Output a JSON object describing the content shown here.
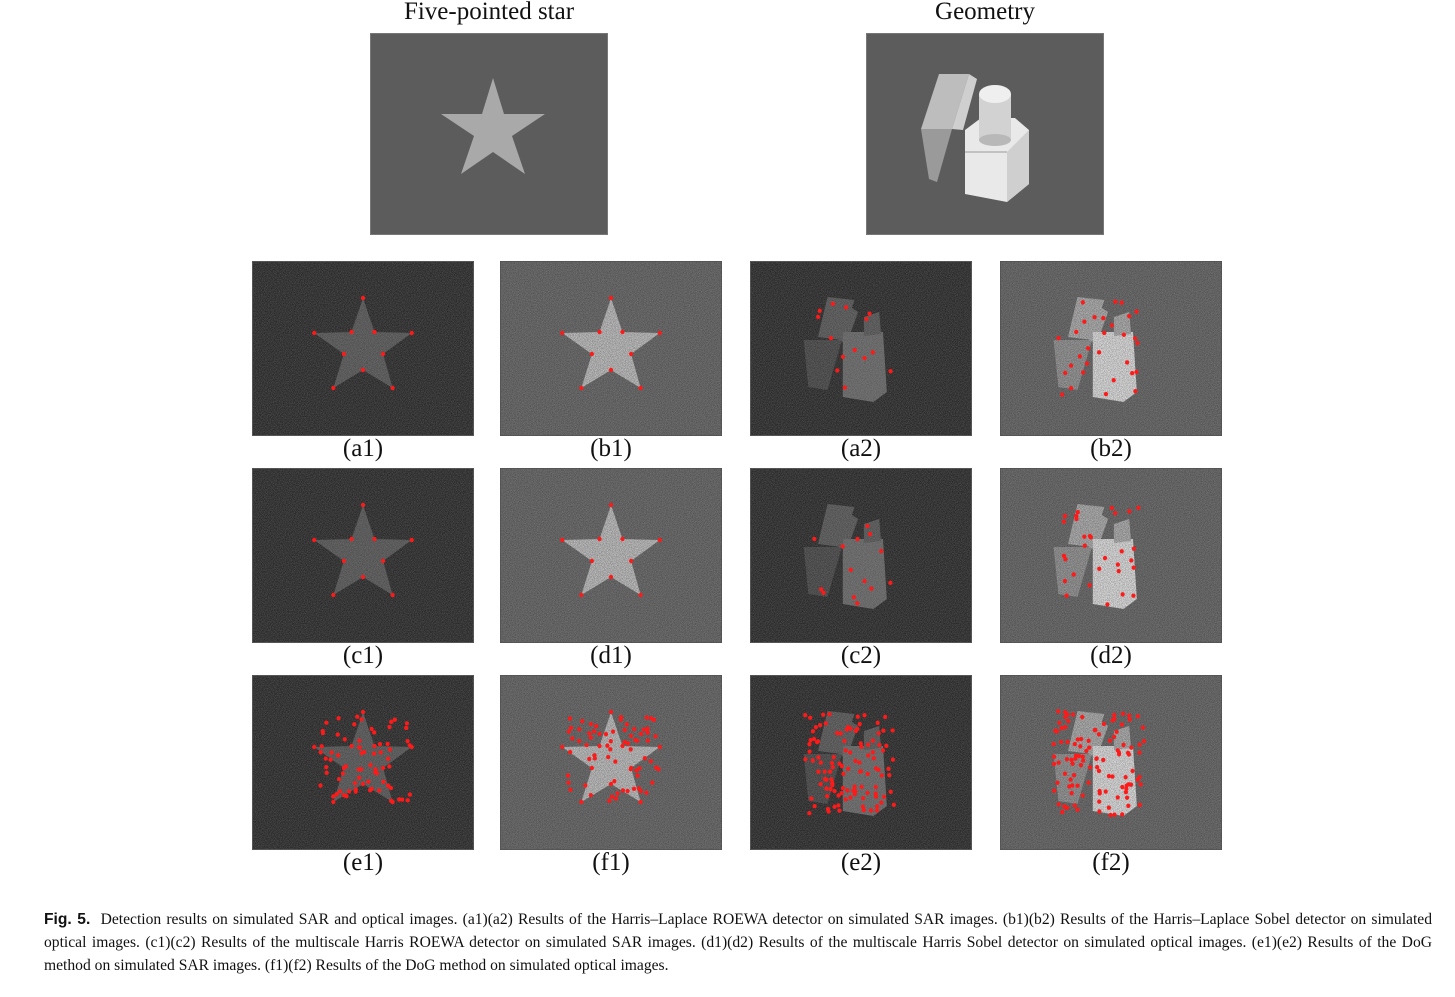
{
  "headers": {
    "star": "Five-pointed star",
    "geometry": "Geometry"
  },
  "panels": {
    "a1": "(a1)",
    "b1": "(b1)",
    "a2": "(a2)",
    "b2": "(b2)",
    "c1": "(c1)",
    "d1": "(d1)",
    "c2": "(c2)",
    "d2": "(d2)",
    "e1": "(e1)",
    "f1": "(f1)",
    "e2": "(e2)",
    "f2": "(f2)"
  },
  "caption": {
    "label": "Fig. 5.",
    "text": "Detection results on simulated SAR and optical images. (a1)(a2) Results of the Harris–Laplace ROEWA detector on simulated SAR images. (b1)(b2) Results of the Harris–Laplace Sobel detector on simulated optical images. (c1)(c2) Results of the multiscale Harris ROEWA detector on simulated SAR images. (d1)(d2) Results of the multiscale Harris Sobel detector on simulated optical images. (e1)(e2) Results of the DoG method on simulated SAR images. (f1)(f2) Results of the DoG method on simulated optical images."
  },
  "colors": {
    "marker": "#ff1a1a",
    "sar_background": "#222222",
    "optical_background": "#7a7a7a",
    "reference_background": "#5c5c5c"
  }
}
